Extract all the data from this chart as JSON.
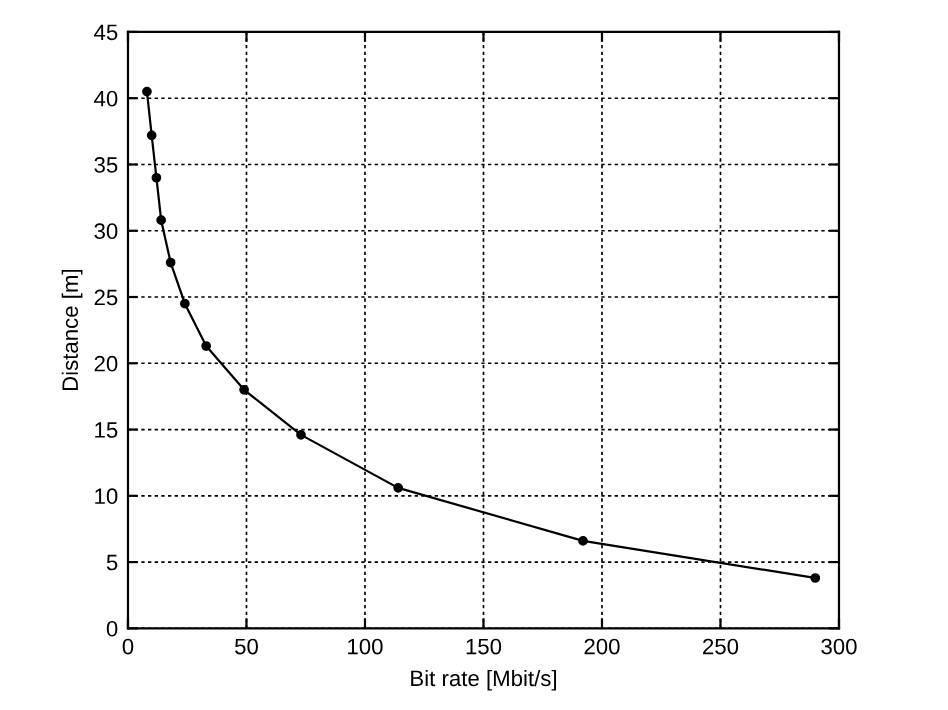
{
  "chart_data": {
    "type": "line",
    "xlabel": "Bit rate [Mbit/s]",
    "ylabel": "Distance [m]",
    "x": [
      8,
      10,
      12,
      14,
      18,
      24,
      33,
      49,
      73,
      114,
      192,
      290
    ],
    "series": [
      {
        "color": "#000000",
        "values": [
          40.5,
          37.2,
          34,
          30.8,
          27.6,
          24.5,
          21.3,
          18,
          14.6,
          10.6,
          6.6,
          3.8
        ]
      }
    ],
    "xlim": [
      0,
      300
    ],
    "xticks": [
      0,
      50,
      100,
      150,
      200,
      250,
      300
    ],
    "ylim": [
      0,
      45
    ],
    "yticks": [
      0,
      5,
      10,
      15,
      20,
      25,
      30,
      35,
      40,
      45
    ],
    "grid": true,
    "marker": "circle",
    "line_style": "solid"
  }
}
